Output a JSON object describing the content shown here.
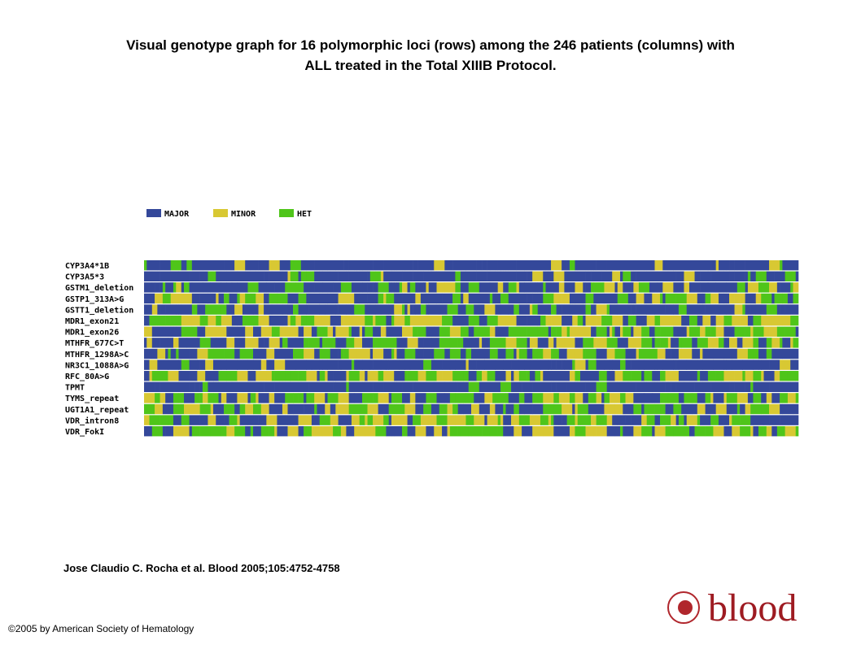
{
  "header": {
    "title_line1": "Visual genotype graph for 16 polymorphic loci (rows) among the 246 patients (columns) with",
    "title_line2": "ALL treated in the Total XIIIB Protocol."
  },
  "legend": [
    {
      "label": "MAJOR",
      "color": "#34489a"
    },
    {
      "label": "MINOR",
      "color": "#d8c833"
    },
    {
      "label": "HET",
      "color": "#4fc51a"
    }
  ],
  "rows": [
    "CYP3A4*1B",
    "CYP3A5*3",
    "GSTM1_deletion",
    "GSTP1_313A>G",
    "GSTT1_deletion",
    "MDR1_exon21",
    "MDR1_exon26",
    "MTHFR_677C>T",
    "MTHFR_1298A>C",
    "NR3C1_1088A>G",
    "RFC_80A>G",
    "TPMT",
    "TYMS_repeat",
    "UGT1A1_repeat",
    "VDR_intron8",
    "VDR_FokI"
  ],
  "footer": {
    "citation": "Jose Claudio C. Rocha et al. Blood 2005;105:4752-4758",
    "copyright": "©2005 by American Society of Hematology",
    "logo": "blood"
  }
}
